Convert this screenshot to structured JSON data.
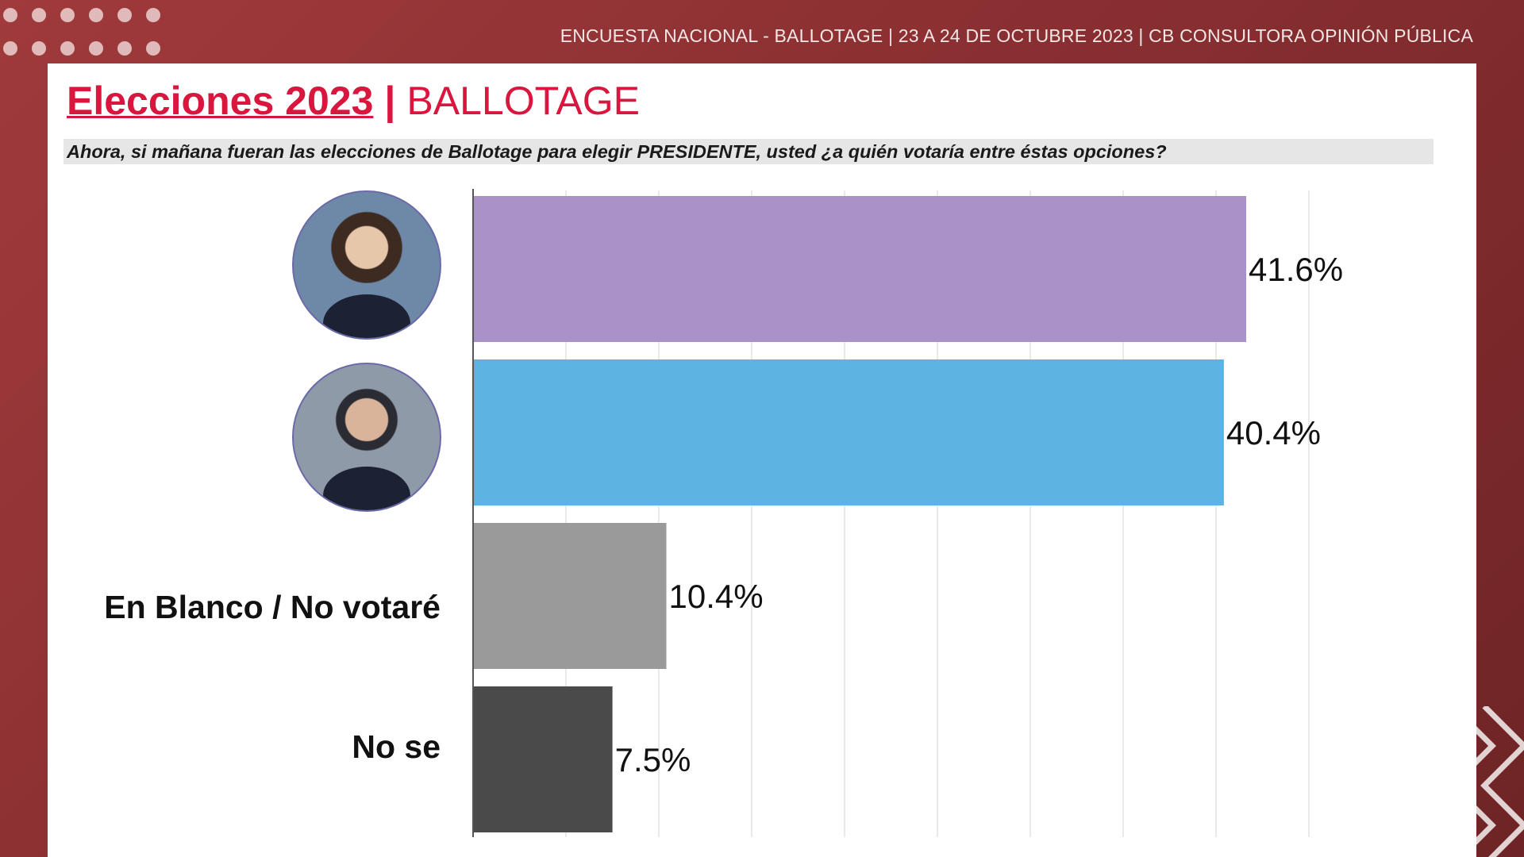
{
  "header": {
    "survey_info": "ENCUESTA NACIONAL - BALLOTAGE  | 23 A 24 DE OCTUBRE 2023 | CB CONSULTORA OPINIÓN PÚBLICA"
  },
  "title": {
    "main": "Elecciones 2023",
    "separator": "|",
    "sub": "BALLOTAGE"
  },
  "question": "Ahora, si mañana fueran las elecciones de Ballotage para elegir PRESIDENTE, usted ¿a quién votaría entre éstas opciones?",
  "chart_data": {
    "type": "bar",
    "orientation": "horizontal",
    "categories": [
      "",
      "",
      "En Blanco / No votaré",
      "No se"
    ],
    "values": [
      41.6,
      40.4,
      10.4,
      7.5
    ],
    "value_labels": [
      "41.6%",
      "40.4%",
      "10.4%",
      "7.5%"
    ],
    "colors": [
      "#aa91c8",
      "#5db4e3",
      "#9a9a9a",
      "#4a4a4a"
    ],
    "xlim": [
      0,
      45
    ],
    "grid": true
  }
}
